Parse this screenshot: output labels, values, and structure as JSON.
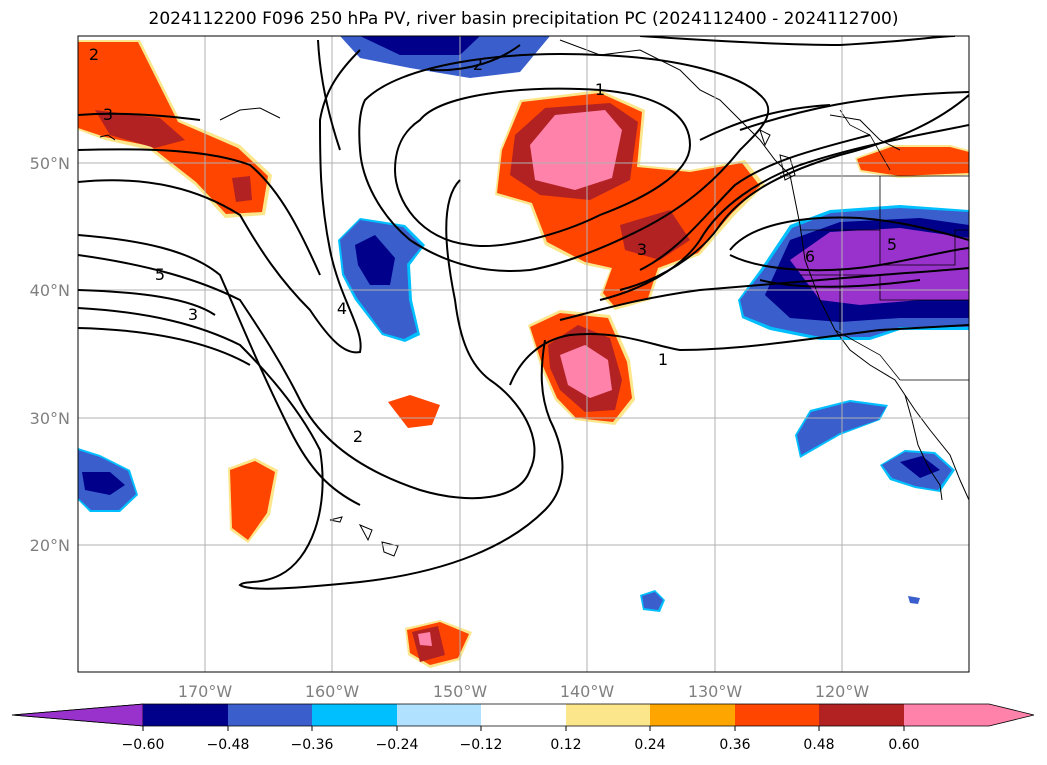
{
  "title": "2024112200 F096 250 hPa PV, river basin precipitation PC (2024112400 - 2024112700)",
  "map": {
    "lon_range": [
      -180,
      -110
    ],
    "lat_range": [
      10,
      60
    ],
    "lat_ticks": [
      {
        "value": 50,
        "label": "50°N"
      },
      {
        "value": 40,
        "label": "40°N"
      },
      {
        "value": 30,
        "label": "30°N"
      },
      {
        "value": 20,
        "label": "20°N"
      }
    ],
    "lon_ticks": [
      {
        "value": -170,
        "label": "170°W"
      },
      {
        "value": -160,
        "label": "160°W"
      },
      {
        "value": -150,
        "label": "150°W"
      },
      {
        "value": -140,
        "label": "140°W"
      },
      {
        "value": -130,
        "label": "130°W"
      },
      {
        "value": -120,
        "label": "120°W"
      }
    ],
    "tick_label_color": "#808080",
    "grid": true,
    "pv_contour_labels": [
      "1",
      "2",
      "3",
      "4",
      "5",
      "6"
    ]
  },
  "colorbar": {
    "ticks": [
      "−0.60",
      "−0.48",
      "−0.36",
      "−0.24",
      "−0.12",
      "0.12",
      "0.24",
      "0.36",
      "0.48",
      "0.60"
    ],
    "colors": [
      "#9932cc",
      "#00008b",
      "#3a5fcd",
      "#00bfff",
      "#b0e2ff",
      "#ffffff",
      "#fce68c",
      "#ffa500",
      "#ff4500",
      "#b22222",
      "#ff82ab"
    ]
  }
}
